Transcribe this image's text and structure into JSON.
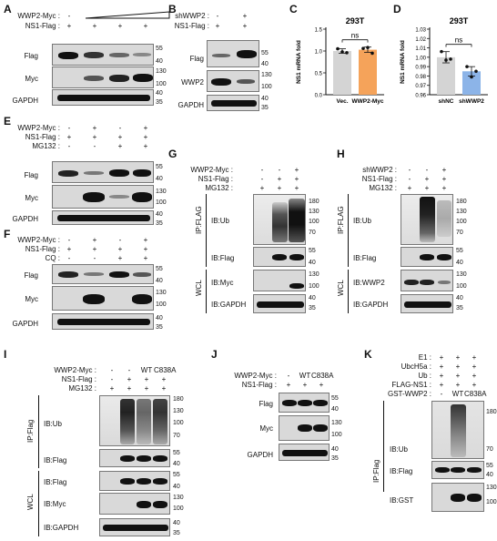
{
  "panels": {
    "A": {
      "letter": "A",
      "rows": [
        {
          "label": "WWP2-Myc :",
          "signs": [
            "-",
            "",
            "",
            ""
          ]
        },
        {
          "label": "NS1-Flag :",
          "signs": [
            "+",
            "+",
            "+",
            "+"
          ]
        }
      ],
      "blots": [
        "Flag",
        "Myc",
        "GAPDH"
      ],
      "mw": [
        "55",
        "40",
        "130",
        "100",
        "40",
        "35"
      ]
    },
    "B": {
      "letter": "B",
      "rows": [
        {
          "label": "shWWP2 :",
          "signs": [
            "-",
            "+"
          ]
        },
        {
          "label": "NS1-Flag :",
          "signs": [
            "+",
            "+"
          ]
        }
      ],
      "blots": [
        "Flag",
        "WWP2",
        "GAPDH"
      ],
      "mw": [
        "55",
        "40",
        "130",
        "100",
        "40",
        "35"
      ]
    },
    "C": {
      "letter": "C"
    },
    "D": {
      "letter": "D"
    },
    "E": {
      "letter": "E",
      "rows": [
        {
          "label": "WWP2-Myc :",
          "signs": [
            "-",
            "+",
            "-",
            "+"
          ]
        },
        {
          "label": "NS1-Flag :",
          "signs": [
            "+",
            "+",
            "+",
            "+"
          ]
        },
        {
          "label": "MG132 :",
          "signs": [
            "-",
            "-",
            "+",
            "+"
          ]
        }
      ],
      "blots": [
        "Flag",
        "Myc",
        "GAPDH"
      ],
      "mw": [
        "55",
        "40",
        "130",
        "100",
        "40",
        "35"
      ]
    },
    "F": {
      "letter": "F",
      "rows": [
        {
          "label": "WWP2-Myc :",
          "signs": [
            "-",
            "+",
            "-",
            "+"
          ]
        },
        {
          "label": "NS1-Flag :",
          "signs": [
            "+",
            "+",
            "+",
            "+"
          ]
        },
        {
          "label": "CQ :",
          "signs": [
            "-",
            "-",
            "+",
            "+"
          ]
        }
      ],
      "blots": [
        "Flag",
        "Myc",
        "GAPDH"
      ],
      "mw": [
        "55",
        "40",
        "130",
        "100",
        "40",
        "35"
      ]
    },
    "G": {
      "letter": "G",
      "rows": [
        {
          "label": "WWP2-Myc :",
          "signs": [
            "-",
            "-",
            "+"
          ]
        },
        {
          "label": "NS1-Flag :",
          "signs": [
            "-",
            "+",
            "+"
          ]
        },
        {
          "label": "MG132 :",
          "signs": [
            "+",
            "+",
            "+"
          ]
        }
      ],
      "group1": "IP:FLAG",
      "group2": "WCL",
      "blots": [
        "IB:Ub",
        "IB:Flag",
        "IB:Myc",
        "IB:GAPDH"
      ],
      "mw_ub": [
        "180",
        "130",
        "100",
        "70"
      ],
      "mw": [
        "55",
        "40",
        "130",
        "100",
        "40",
        "35"
      ]
    },
    "H": {
      "letter": "H",
      "rows": [
        {
          "label": "shWWP2 :",
          "signs": [
            "-",
            "-",
            "+"
          ]
        },
        {
          "label": "NS1-Flag :",
          "signs": [
            "-",
            "+",
            "+"
          ]
        },
        {
          "label": "MG132 :",
          "signs": [
            "+",
            "+",
            "+"
          ]
        }
      ],
      "group1": "IP:FLAG",
      "group2": "WCL",
      "blots": [
        "IB:Ub",
        "IB:Flag",
        "IB:WWP2",
        "IB:GAPDH"
      ],
      "mw_ub": [
        "180",
        "130",
        "100",
        "70"
      ],
      "mw": [
        "55",
        "40",
        "130",
        "100",
        "40",
        "35"
      ]
    },
    "I": {
      "letter": "I",
      "rows": [
        {
          "label": "WWP2-Myc :",
          "signs": [
            "-",
            "-",
            "WT",
            "C838A"
          ]
        },
        {
          "label": "NS1-Flag :",
          "signs": [
            "-",
            "+",
            "+",
            "+"
          ]
        },
        {
          "label": "MG132 :",
          "signs": [
            "+",
            "+",
            "+",
            "+"
          ]
        }
      ],
      "group1": "IP:Flag",
      "group2": "WCL",
      "blots": [
        "IB:Ub",
        "IB:Flag",
        "IB:Flag",
        "IB:Myc",
        "IB:GAPDH"
      ],
      "mw_ub": [
        "180",
        "130",
        "100",
        "70"
      ],
      "mw": [
        "55",
        "40",
        "55",
        "40",
        "130",
        "100",
        "40",
        "35"
      ]
    },
    "J": {
      "letter": "J",
      "rows": [
        {
          "label": "WWP2-Myc :",
          "signs": [
            "-",
            "WT",
            "C838A"
          ]
        },
        {
          "label": "NS1-Flag :",
          "signs": [
            "+",
            "+",
            "+"
          ]
        }
      ],
      "blots": [
        "Flag",
        "Myc",
        "GAPDH"
      ],
      "mw": [
        "55",
        "40",
        "130",
        "100",
        "40",
        "35"
      ]
    },
    "K": {
      "letter": "K",
      "rows": [
        {
          "label": "E1 :",
          "signs": [
            "+",
            "+",
            "+"
          ]
        },
        {
          "label": "UbcH5a :",
          "signs": [
            "+",
            "+",
            "+"
          ]
        },
        {
          "label": "Ub :",
          "signs": [
            "+",
            "+",
            "+"
          ]
        },
        {
          "label": "FLAG-NS1 :",
          "signs": [
            "+",
            "+",
            "+"
          ]
        },
        {
          "label": "GST-WWP2 :",
          "signs": [
            "-",
            "WT",
            "C838A"
          ]
        }
      ],
      "group1": "IP:Flag",
      "blots": [
        "IB:Ub",
        "IB:Flag",
        "IB:GST"
      ],
      "mw_ub": [
        "180",
        "70"
      ],
      "mw": [
        "55",
        "40",
        "130",
        "100"
      ]
    }
  },
  "chart_data": [
    {
      "type": "bar",
      "panel": "C",
      "title": "293T",
      "categories": [
        "Vec.",
        "WWP2-Myc"
      ],
      "values": [
        1.0,
        1.03
      ],
      "errors": [
        0.05,
        0.06
      ],
      "points": [
        [
          1.05,
          0.98,
          0.96
        ],
        [
          1.06,
          1.08,
          0.95
        ]
      ],
      "ylabel": "NS1 mRNA fold",
      "ylim": [
        0.0,
        1.5
      ],
      "yticks": [
        "0.0",
        "0.5",
        "1.0",
        "1.5"
      ],
      "significance": "ns",
      "colors": [
        "#d4d4d4",
        "#f5a35a"
      ]
    },
    {
      "type": "bar",
      "panel": "D",
      "title": "293T",
      "categories": [
        "shNC",
        "shWWP2"
      ],
      "values": [
        1.0,
        0.985
      ],
      "errors": [
        0.006,
        0.005
      ],
      "points": [
        [
          1.006,
          0.997,
          0.998
        ],
        [
          0.99,
          0.979,
          0.985
        ]
      ],
      "ylabel": "NS1 mRNA fold",
      "ylim": [
        0.96,
        1.03
      ],
      "yticks": [
        "0.96",
        "0.97",
        "0.98",
        "0.99",
        "1.00",
        "1.01",
        "1.02",
        "1.03"
      ],
      "significance": "ns",
      "colors": [
        "#d4d4d4",
        "#8cb4e8"
      ]
    }
  ]
}
